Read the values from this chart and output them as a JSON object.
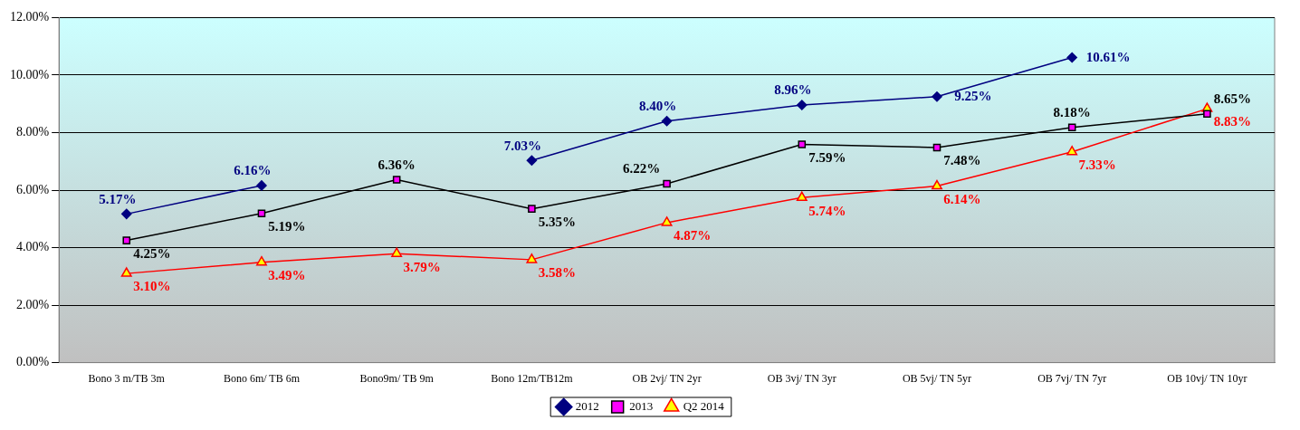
{
  "chart_data": {
    "type": "line",
    "categories": [
      "Bono 3 m/TB 3m",
      "Bono 6m/ TB 6m",
      "Bono9m/ TB 9m",
      "Bono 12m/TB12m",
      "OB 2vj/ TN 2yr",
      "OB 3vj/ TN 3yr",
      "OB 5vj/ TN 5yr",
      "OB 7vj/ TN 7yr",
      "OB 10vj/ TN 10yr"
    ],
    "series": [
      {
        "name": "2012",
        "color": "#000080",
        "marker": "diamond",
        "values": [
          5.17,
          6.16,
          null,
          7.03,
          8.4,
          8.96,
          9.25,
          10.61,
          null
        ],
        "value_labels": [
          "5.17%",
          "6.16%",
          null,
          "7.03%",
          "8.40%",
          "8.96%",
          "9.25%",
          "10.61%",
          null
        ]
      },
      {
        "name": "2013",
        "color": "#000000",
        "marker": "square",
        "colors": [
          "#ff00ff",
          "#ff00ff",
          "#ff00ff",
          "#ff00ff",
          "#ff00ff",
          "#ff00ff",
          "#ff00ff",
          "#ff00ff",
          "#ff00ff"
        ],
        "values": [
          4.25,
          5.19,
          6.36,
          5.35,
          6.22,
          7.59,
          7.48,
          8.18,
          8.65
        ],
        "value_labels": [
          "4.25%",
          "5.19%",
          "6.36%",
          "5.35%",
          "6.22%",
          "7.59%",
          "7.48%",
          "8.18%",
          "8.65%"
        ]
      },
      {
        "name": "Q2 2014",
        "color": "#ff0000",
        "marker": "triangle",
        "colors": [
          "#ffff00",
          "#ffff00",
          "#ffff00",
          "#ffff00",
          "#ffff00",
          "#ffff00",
          "#ffff00",
          "#ffff00",
          "#ffff00"
        ],
        "values": [
          3.1,
          3.49,
          3.79,
          3.58,
          4.87,
          5.74,
          6.14,
          7.33,
          8.83
        ],
        "value_labels": [
          "3.10%",
          "3.49%",
          "3.79%",
          "3.58%",
          "4.87%",
          "5.74%",
          "6.14%",
          "7.33%",
          "8.83%"
        ]
      }
    ],
    "ylim": [
      0,
      12
    ],
    "yticks": [
      {
        "value": 0,
        "label": "0.00%"
      },
      {
        "value": 2,
        "label": "2.00%"
      },
      {
        "value": 4,
        "label": "4.00%"
      },
      {
        "value": 6,
        "label": "6.00%"
      },
      {
        "value": 8,
        "label": "8.00%"
      },
      {
        "value": 10,
        "label": "10.00%"
      },
      {
        "value": 12,
        "label": "12.00%"
      }
    ],
    "grid": "y",
    "legend": "bottom",
    "line_style": "solid"
  }
}
